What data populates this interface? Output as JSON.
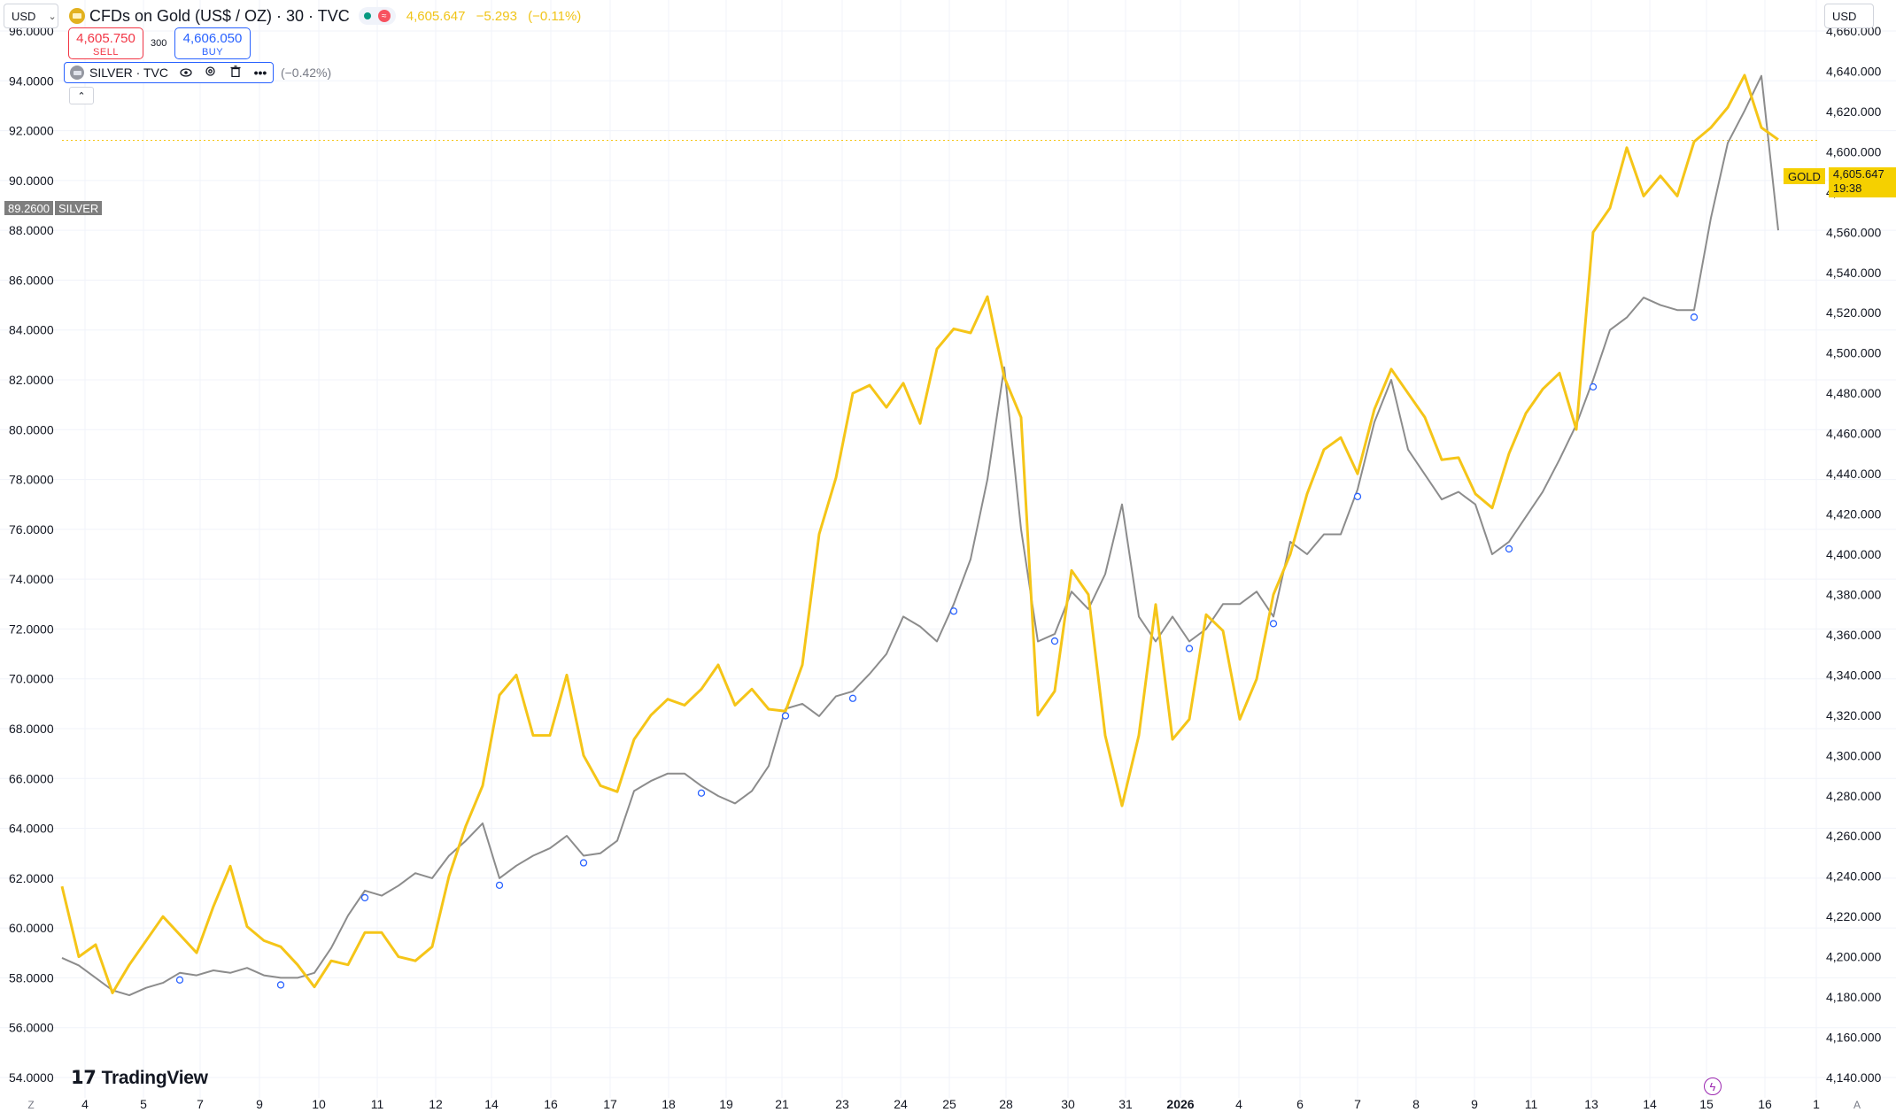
{
  "currency_left": "USD",
  "currency_right": "USD",
  "header": {
    "title": "CFDs on Gold (US$ / OZ) · 30 · TVC",
    "price": "4,605.647",
    "change": "−5.293",
    "change_pct": "(−0.11%)",
    "sell_price": "4,605.750",
    "sell_label": "SELL",
    "buy_price": "4,606.050",
    "buy_label": "BUY",
    "spread": "300",
    "status_icon": "market-open-dot",
    "data_icon": "delayed-data-icon"
  },
  "silver": {
    "name": "SILVER · TVC",
    "change_pct": "(−0.42%)",
    "tag_value": "89.2600",
    "tag_label": "SILVER",
    "icons": [
      "eye-icon",
      "settings-icon",
      "delete-icon",
      "more-icon"
    ]
  },
  "collapse_icon": "chevron-up-icon",
  "gold_tag": {
    "label": "GOLD",
    "price": "4,605.647",
    "countdown": "19:38"
  },
  "logo_text": "TradingView",
  "colors": {
    "gold": "#F5C518",
    "silver": "#8C8C8C",
    "sell": "#F23645",
    "buy": "#2962FF"
  },
  "chart_data": {
    "type": "line",
    "x_ticks": [
      "4",
      "5",
      "7",
      "9",
      "10",
      "11",
      "12",
      "14",
      "16",
      "17",
      "18",
      "19",
      "21",
      "23",
      "24",
      "25",
      "28",
      "30",
      "31",
      "2026",
      "4",
      "6",
      "7",
      "8",
      "9",
      "11",
      "13",
      "14",
      "15",
      "16",
      "1"
    ],
    "x_tick_extra": [
      "Z",
      "A"
    ],
    "left_axis": {
      "series": "SILVER",
      "ticks": [
        "96.0000",
        "94.0000",
        "92.0000",
        "90.0000",
        "88.0000",
        "86.0000",
        "84.0000",
        "82.0000",
        "80.0000",
        "78.0000",
        "76.0000",
        "74.0000",
        "72.0000",
        "70.0000",
        "68.0000",
        "66.0000",
        "64.0000",
        "62.0000",
        "60.0000",
        "58.0000",
        "56.0000",
        "54.0000"
      ],
      "range": [
        54,
        96
      ]
    },
    "right_axis": {
      "series": "GOLD",
      "ticks": [
        "4,660.000",
        "4,640.000",
        "4,620.000",
        "4,600.000",
        "4,580.000",
        "4,560.000",
        "4,540.000",
        "4,520.000",
        "4,500.000",
        "4,480.000",
        "4,460.000",
        "4,440.000",
        "4,420.000",
        "4,400.000",
        "4,380.000",
        "4,360.000",
        "4,340.000",
        "4,320.000",
        "4,300.000",
        "4,280.000",
        "4,260.000",
        "4,240.000",
        "4,220.000",
        "4,200.000",
        "4,180.000",
        "4,160.000",
        "4,140.000"
      ],
      "range": [
        4140,
        4660
      ]
    },
    "grid": true,
    "current_line": 4605.647,
    "series": [
      {
        "name": "GOLD",
        "axis": "right",
        "color": "#F5C518",
        "points": [
          [
            0,
            4235
          ],
          [
            1,
            4200
          ],
          [
            2,
            4206
          ],
          [
            3,
            4182
          ],
          [
            4,
            4196
          ],
          [
            6,
            4220
          ],
          [
            8,
            4202
          ],
          [
            9,
            4225
          ],
          [
            10,
            4245
          ],
          [
            11,
            4215
          ],
          [
            12,
            4208
          ],
          [
            13,
            4205
          ],
          [
            14,
            4196
          ],
          [
            15,
            4185
          ],
          [
            16,
            4198
          ],
          [
            17,
            4196
          ],
          [
            18,
            4212
          ],
          [
            19,
            4212
          ],
          [
            20,
            4200
          ],
          [
            21,
            4198
          ],
          [
            22,
            4205
          ],
          [
            23,
            4240
          ],
          [
            24,
            4265
          ],
          [
            25,
            4285
          ],
          [
            26,
            4330
          ],
          [
            27,
            4340
          ],
          [
            28,
            4310
          ],
          [
            29,
            4310
          ],
          [
            30,
            4340
          ],
          [
            31,
            4300
          ],
          [
            32,
            4285
          ],
          [
            33,
            4282
          ],
          [
            34,
            4308
          ],
          [
            35,
            4320
          ],
          [
            36,
            4328
          ],
          [
            37,
            4325
          ],
          [
            38,
            4333
          ],
          [
            39,
            4345
          ],
          [
            40,
            4325
          ],
          [
            41,
            4333
          ],
          [
            42,
            4323
          ],
          [
            43,
            4322
          ],
          [
            44,
            4345
          ],
          [
            45,
            4410
          ],
          [
            46,
            4438
          ],
          [
            47,
            4480
          ],
          [
            48,
            4484
          ],
          [
            49,
            4473
          ],
          [
            50,
            4485
          ],
          [
            51,
            4465
          ],
          [
            52,
            4502
          ],
          [
            53,
            4512
          ],
          [
            54,
            4510
          ],
          [
            55,
            4528
          ],
          [
            56,
            4488
          ],
          [
            57,
            4468
          ],
          [
            58,
            4320
          ],
          [
            59,
            4332
          ],
          [
            60,
            4392
          ],
          [
            61,
            4380
          ],
          [
            62,
            4310
          ],
          [
            63,
            4275
          ],
          [
            64,
            4310
          ],
          [
            65,
            4375
          ],
          [
            66,
            4308
          ],
          [
            67,
            4318
          ],
          [
            68,
            4370
          ],
          [
            69,
            4362
          ],
          [
            70,
            4318
          ],
          [
            71,
            4338
          ],
          [
            72,
            4380
          ],
          [
            73,
            4400
          ],
          [
            74,
            4430
          ],
          [
            75,
            4452
          ],
          [
            76,
            4458
          ],
          [
            77,
            4440
          ],
          [
            78,
            4472
          ],
          [
            79,
            4492
          ],
          [
            80,
            4480
          ],
          [
            81,
            4468
          ],
          [
            82,
            4447
          ],
          [
            83,
            4448
          ],
          [
            84,
            4430
          ],
          [
            85,
            4423
          ],
          [
            86,
            4450
          ],
          [
            87,
            4470
          ],
          [
            88,
            4482
          ],
          [
            89,
            4490
          ],
          [
            90,
            4462
          ],
          [
            91,
            4560
          ],
          [
            92,
            4572
          ],
          [
            93,
            4602
          ],
          [
            94,
            4578
          ],
          [
            95,
            4588
          ],
          [
            96,
            4578
          ],
          [
            97,
            4605
          ],
          [
            98,
            4612
          ],
          [
            99,
            4622
          ],
          [
            100,
            4638
          ],
          [
            101,
            4612
          ],
          [
            102,
            4606
          ]
        ]
      },
      {
        "name": "SILVER",
        "axis": "left",
        "color": "#8C8C8C",
        "points": [
          [
            0,
            58.8
          ],
          [
            1,
            58.5
          ],
          [
            2,
            58.0
          ],
          [
            3,
            57.5
          ],
          [
            4,
            57.3
          ],
          [
            5,
            57.6
          ],
          [
            6,
            57.8
          ],
          [
            7,
            58.2
          ],
          [
            8,
            58.1
          ],
          [
            9,
            58.3
          ],
          [
            10,
            58.2
          ],
          [
            11,
            58.4
          ],
          [
            12,
            58.1
          ],
          [
            13,
            58.0
          ],
          [
            14,
            58.0
          ],
          [
            15,
            58.2
          ],
          [
            16,
            59.2
          ],
          [
            17,
            60.5
          ],
          [
            18,
            61.5
          ],
          [
            19,
            61.3
          ],
          [
            20,
            61.7
          ],
          [
            21,
            62.2
          ],
          [
            22,
            62.0
          ],
          [
            23,
            62.9
          ],
          [
            24,
            63.5
          ],
          [
            25,
            64.2
          ],
          [
            26,
            62.0
          ],
          [
            27,
            62.5
          ],
          [
            28,
            62.9
          ],
          [
            29,
            63.2
          ],
          [
            30,
            63.7
          ],
          [
            31,
            62.9
          ],
          [
            32,
            63.0
          ],
          [
            33,
            63.5
          ],
          [
            34,
            65.5
          ],
          [
            35,
            65.9
          ],
          [
            36,
            66.2
          ],
          [
            37,
            66.2
          ],
          [
            38,
            65.7
          ],
          [
            39,
            65.3
          ],
          [
            40,
            65.0
          ],
          [
            41,
            65.5
          ],
          [
            42,
            66.5
          ],
          [
            43,
            68.8
          ],
          [
            44,
            69.0
          ],
          [
            45,
            68.5
          ],
          [
            46,
            69.3
          ],
          [
            47,
            69.5
          ],
          [
            48,
            70.2
          ],
          [
            49,
            71.0
          ],
          [
            50,
            72.5
          ],
          [
            51,
            72.1
          ],
          [
            52,
            71.5
          ],
          [
            53,
            73.0
          ],
          [
            54,
            74.8
          ],
          [
            55,
            78.0
          ],
          [
            56,
            82.5
          ],
          [
            57,
            76.0
          ],
          [
            58,
            71.5
          ],
          [
            59,
            71.8
          ],
          [
            60,
            73.5
          ],
          [
            61,
            72.8
          ],
          [
            62,
            74.2
          ],
          [
            63,
            77.0
          ],
          [
            64,
            72.5
          ],
          [
            65,
            71.5
          ],
          [
            66,
            72.5
          ],
          [
            67,
            71.5
          ],
          [
            68,
            72.0
          ],
          [
            69,
            73.0
          ],
          [
            70,
            73.0
          ],
          [
            71,
            73.5
          ],
          [
            72,
            72.5
          ],
          [
            73,
            75.5
          ],
          [
            74,
            75.0
          ],
          [
            75,
            75.8
          ],
          [
            76,
            75.8
          ],
          [
            77,
            77.6
          ],
          [
            78,
            80.3
          ],
          [
            79,
            82.0
          ],
          [
            80,
            79.2
          ],
          [
            81,
            78.2
          ],
          [
            82,
            77.2
          ],
          [
            83,
            77.5
          ],
          [
            84,
            77.0
          ],
          [
            85,
            75.0
          ],
          [
            86,
            75.5
          ],
          [
            87,
            76.5
          ],
          [
            88,
            77.5
          ],
          [
            89,
            78.8
          ],
          [
            90,
            80.2
          ],
          [
            91,
            82.0
          ],
          [
            92,
            84.0
          ],
          [
            93,
            84.5
          ],
          [
            94,
            85.3
          ],
          [
            95,
            85.0
          ],
          [
            96,
            84.8
          ],
          [
            97,
            84.8
          ],
          [
            98,
            88.5
          ],
          [
            99,
            91.5
          ],
          [
            100,
            92.8
          ],
          [
            101,
            94.2
          ],
          [
            102,
            88.0
          ]
        ]
      }
    ],
    "markers": {
      "silver_x": [
        7,
        13,
        18,
        26,
        31,
        38,
        43,
        47,
        53,
        59,
        67,
        72,
        77,
        86,
        91,
        97
      ]
    }
  }
}
